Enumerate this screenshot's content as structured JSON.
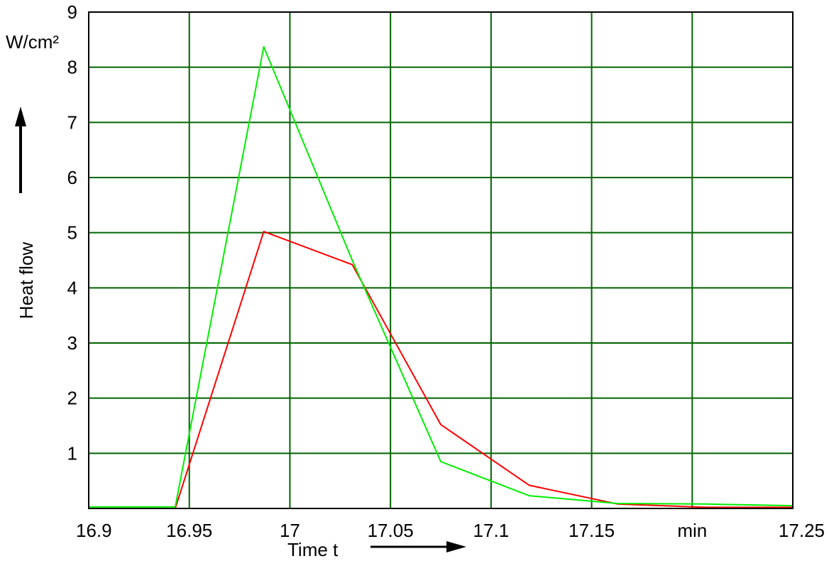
{
  "chart_data": {
    "type": "line",
    "y_unit_label": "W/cm²",
    "xlabel": "Time t",
    "ylabel": "Heat flow",
    "x_tick_labels": [
      "16.9",
      "16.95",
      "17",
      "17.05",
      "17.1",
      "17.15",
      "min",
      "17.25"
    ],
    "x_tick_values": [
      16.9,
      16.95,
      17.0,
      17.05,
      17.1,
      17.15,
      17.2,
      17.25
    ],
    "y_tick_labels": [
      "1",
      "2",
      "3",
      "4",
      "5",
      "6",
      "7",
      "8",
      "9"
    ],
    "y_tick_values": [
      1,
      2,
      3,
      4,
      5,
      6,
      7,
      8,
      9
    ],
    "xlim": [
      16.9,
      17.25
    ],
    "ylim": [
      0,
      9
    ],
    "grid": true,
    "colors": {
      "grid": "#006400",
      "frame": "#000000"
    },
    "series": [
      {
        "color": "#ff0000",
        "points": [
          [
            16.9,
            0.0
          ],
          [
            16.943,
            0.0
          ],
          [
            16.987,
            5.02
          ],
          [
            17.031,
            4.42
          ],
          [
            17.075,
            1.52
          ],
          [
            17.119,
            0.42
          ],
          [
            17.163,
            0.08
          ],
          [
            17.207,
            0.02
          ],
          [
            17.25,
            0.02
          ]
        ]
      },
      {
        "color": "#00ee00",
        "points": [
          [
            16.9,
            0.03
          ],
          [
            16.943,
            0.03
          ],
          [
            16.987,
            8.37
          ],
          [
            17.031,
            4.5
          ],
          [
            17.075,
            0.85
          ],
          [
            17.119,
            0.23
          ],
          [
            17.163,
            0.09
          ],
          [
            17.207,
            0.08
          ],
          [
            17.25,
            0.05
          ]
        ]
      }
    ]
  }
}
